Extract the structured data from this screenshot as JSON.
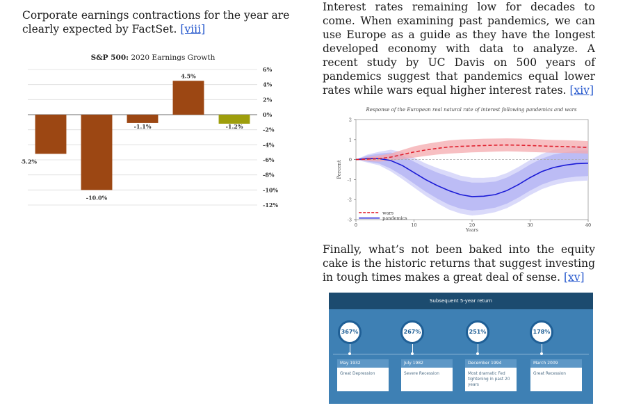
{
  "paragraphs": {
    "p1_text": "Corporate earnings contractions for the year are clearly expected by FactSet. ",
    "p1_link": "[viii]",
    "p2_text": "Interest rates remaining low for decades to come. When examining past pandemics, we can use Europe as a guide as they have the longest developed economy with data to analyze. A recent study by UC Davis on 500 years of pandemics suggest that pandemics equal lower rates while wars equal higher interest rates. ",
    "p2_link": "[xiv]",
    "p3_text": "Finally, what’s not been baked into the equity cake is the historic returns that suggest investing in tough times makes a great deal of sense. ",
    "p3_link": "[xv]"
  },
  "chart_data": [
    {
      "type": "bar",
      "title_bold": "S&P 500:",
      "title_rest": " 2020 Earnings Growth",
      "values": [
        -5.2,
        -10.0,
        -1.1,
        4.5,
        -1.2
      ],
      "value_labels": [
        "-5.2%",
        "-10.0%",
        "-1.1%",
        "4.5%",
        "-1.2%"
      ],
      "bar_colors": [
        "#9c4713",
        "#9c4713",
        "#9c4713",
        "#9c4713",
        "#9e9e0c"
      ],
      "ylim": [
        -12,
        6
      ],
      "yticks": [
        6,
        4,
        2,
        0,
        -2,
        -4,
        -6,
        -8,
        -10,
        -12
      ],
      "ytick_labels": [
        "6%",
        "4%",
        "2%",
        "0%",
        "-2%",
        "-4%",
        "-6%",
        "-8%",
        "-10%",
        "-12%"
      ],
      "grid": true
    },
    {
      "type": "line",
      "title": "Response of the European real natural rate of interest following pandemics and wars",
      "xlabel": "Years",
      "ylabel": "Percent",
      "xlim": [
        0,
        40
      ],
      "ylim": [
        -3,
        2
      ],
      "xticks": [
        0,
        10,
        20,
        30,
        40
      ],
      "yticks": [
        2,
        1,
        0,
        -1,
        -2,
        -3
      ],
      "legend_position": "lower-left",
      "series": [
        {
          "name": "wars",
          "color": "#e0202e",
          "band_color": "#f4a9ae",
          "x": [
            0,
            2,
            4,
            6,
            8,
            10,
            12,
            14,
            16,
            18,
            20,
            22,
            24,
            26,
            28,
            30,
            32,
            34,
            36,
            38,
            40
          ],
          "values": [
            0,
            0.02,
            0.05,
            0.12,
            0.25,
            0.38,
            0.48,
            0.56,
            0.63,
            0.66,
            0.68,
            0.7,
            0.72,
            0.73,
            0.72,
            0.7,
            0.68,
            0.66,
            0.65,
            0.63,
            0.6
          ],
          "lower": [
            0,
            -0.08,
            -0.1,
            -0.05,
            0.02,
            0.1,
            0.18,
            0.25,
            0.3,
            0.33,
            0.36,
            0.38,
            0.4,
            0.41,
            0.4,
            0.38,
            0.36,
            0.34,
            0.33,
            0.32,
            0.3
          ],
          "upper": [
            0,
            0.12,
            0.2,
            0.3,
            0.48,
            0.66,
            0.78,
            0.87,
            0.96,
            1.0,
            1.02,
            1.04,
            1.05,
            1.06,
            1.05,
            1.03,
            1.0,
            0.98,
            0.97,
            0.95,
            0.92
          ]
        },
        {
          "name": "pandemics",
          "color": "#1b1bd6",
          "band_color": "#b8b8f4",
          "band_outer_color": "#dadafa",
          "x": [
            0,
            2,
            4,
            6,
            8,
            10,
            12,
            14,
            16,
            18,
            20,
            22,
            24,
            26,
            28,
            30,
            32,
            34,
            36,
            38,
            40
          ],
          "values": [
            0,
            0.05,
            0.05,
            -0.05,
            -0.3,
            -0.65,
            -1.0,
            -1.3,
            -1.55,
            -1.75,
            -1.85,
            -1.83,
            -1.75,
            -1.55,
            -1.25,
            -0.9,
            -0.6,
            -0.4,
            -0.28,
            -0.2,
            -0.18
          ],
          "lower": [
            0,
            -0.1,
            -0.2,
            -0.45,
            -0.8,
            -1.2,
            -1.6,
            -1.95,
            -2.25,
            -2.45,
            -2.55,
            -2.5,
            -2.4,
            -2.2,
            -1.9,
            -1.55,
            -1.25,
            -1.05,
            -0.92,
            -0.85,
            -0.82
          ],
          "upper": [
            0,
            0.2,
            0.3,
            0.35,
            0.2,
            -0.1,
            -0.4,
            -0.65,
            -0.85,
            -1.05,
            -1.15,
            -1.15,
            -1.1,
            -0.9,
            -0.6,
            -0.25,
            0.05,
            0.25,
            0.36,
            0.45,
            0.46
          ]
        }
      ]
    }
  ],
  "infographic": {
    "header": "Subsequent 5-year return",
    "items": [
      {
        "value": "367%",
        "date": "May 1932",
        "description": "Great Depression"
      },
      {
        "value": "267%",
        "date": "July 1982",
        "description": "Severe Recession"
      },
      {
        "value": "251%",
        "date": "December 1994",
        "description": "Most dramatic Fed tightening in past 20 years"
      },
      {
        "value": "178%",
        "date": "March 2009",
        "description": "Great Recession"
      }
    ]
  }
}
